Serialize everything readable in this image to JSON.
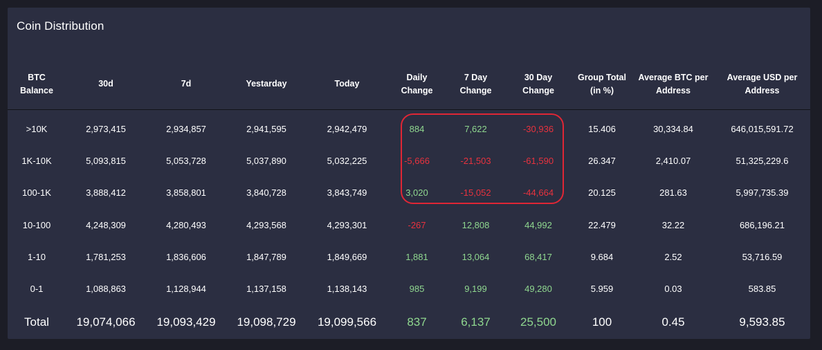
{
  "title": "Coin Distribution",
  "columns": [
    "BTC Balance",
    "30d",
    "7d",
    "Yestarday",
    "Today",
    "Daily Change",
    "7 Day Change",
    "30 Day Change",
    "Group Total (in %)",
    "Average BTC per Address",
    "Average USD per Address"
  ],
  "rows": [
    [
      "&gt;10K",
      "2,973,415",
      "2,934,857",
      "2,941,595",
      "2,942,479",
      "884",
      "7,622",
      "-30,936",
      "15.406",
      "30,334.84",
      "646,015,591.72"
    ],
    [
      "1K-10K",
      "5,093,815",
      "5,053,728",
      "5,037,890",
      "5,032,225",
      "-5,666",
      "-21,503",
      "-61,590",
      "26.347",
      "2,410.07",
      "51,325,229.6"
    ],
    [
      "100-1K",
      "3,888,412",
      "3,858,801",
      "3,840,728",
      "3,843,749",
      "3,020",
      "-15,052",
      "-44,664",
      "20.125",
      "281.63",
      "5,997,735.39"
    ],
    [
      "10-100",
      "4,248,309",
      "4,280,493",
      "4,293,568",
      "4,293,301",
      "-267",
      "12,808",
      "44,992",
      "22.479",
      "32.22",
      "686,196.21"
    ],
    [
      "1-10",
      "1,781,253",
      "1,836,606",
      "1,847,789",
      "1,849,669",
      "1,881",
      "13,064",
      "68,417",
      "9.684",
      "2.52",
      "53,716.59"
    ],
    [
      "0-1",
      "1,088,863",
      "1,128,944",
      "1,137,158",
      "1,138,143",
      "985",
      "9,199",
      "49,280",
      "5.959",
      "0.03",
      "583.85"
    ]
  ],
  "total": [
    "Total",
    "19,074,066",
    "19,093,429",
    "19,098,729",
    "19,099,566",
    "837",
    "6,137",
    "25,500",
    "100",
    "0.45",
    "9,593.85"
  ],
  "colors": {
    "background": "#1c1d26",
    "panel": "#2b2e41",
    "positive": "#8fd78f",
    "negative": "#e8323e",
    "highlight": "#e02635"
  }
}
